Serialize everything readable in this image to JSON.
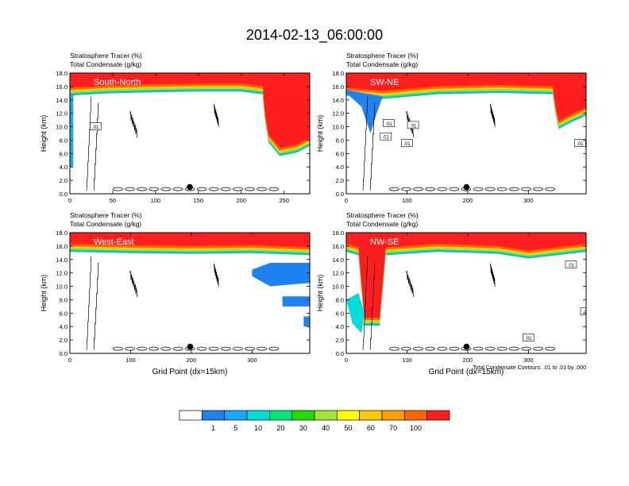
{
  "title": "2014-02-13_06:00:00",
  "colors": {
    "levels": [
      "#ffffff",
      "#1e82f0",
      "#14aaff",
      "#00dcdc",
      "#00e678",
      "#1edc00",
      "#a0e632",
      "#ffff00",
      "#ffc800",
      "#ffa000",
      "#ff6400",
      "#ff1e1e"
    ],
    "contour": "#000000"
  },
  "colorbar": {
    "labels": [
      "1",
      "5",
      "10",
      "20",
      "30",
      "40",
      "50",
      "60",
      "70",
      "100"
    ]
  },
  "chart_data": [
    {
      "type": "heatmap",
      "label": "South-North",
      "title_line1": "Stratosphere Tracer   (%)",
      "title_line2": "Total Condensate   (g/kg)",
      "ylabel": "Height (km)",
      "xlabel": "",
      "xlim": [
        0,
        280
      ],
      "ylim": [
        0,
        18
      ],
      "xticks": [
        "0",
        "50",
        "100",
        "150",
        "200",
        "250"
      ],
      "yticks": [
        "0.0",
        "2.0",
        "4.0",
        "6.0",
        "8.0",
        "10.0",
        "12.0",
        "14.0",
        "16.0",
        "18.0"
      ],
      "tropopause": [
        [
          0,
          15.0
        ],
        [
          40,
          15.3
        ],
        [
          100,
          15.5
        ],
        [
          150,
          15.6
        ],
        [
          200,
          15.6
        ],
        [
          225,
          15.2
        ],
        [
          228,
          11.0
        ],
        [
          232,
          8.0
        ],
        [
          245,
          6.0
        ],
        [
          265,
          6.5
        ],
        [
          280,
          7.5
        ]
      ],
      "contour_labels": [
        {
          "x": 30,
          "y": 10.0,
          "text": ".01"
        }
      ],
      "marker": {
        "x": 140,
        "y": 1.0
      }
    },
    {
      "type": "heatmap",
      "label": "SW-NE",
      "title_line1": "Stratosphere Tracer   (%)",
      "title_line2": "Total Condensate   (g/kg)",
      "ylabel": "Height (km)",
      "xlabel": "",
      "xlim": [
        0,
        395
      ],
      "ylim": [
        0,
        18
      ],
      "xticks": [
        "0",
        "100",
        "200",
        "300"
      ],
      "yticks": [
        "0.0",
        "2.0",
        "4.0",
        "6.0",
        "8.0",
        "10.0",
        "12.0",
        "14.0",
        "16.0",
        "18.0"
      ],
      "tropopause": [
        [
          0,
          15.0
        ],
        [
          60,
          14.5
        ],
        [
          150,
          15.2
        ],
        [
          250,
          15.4
        ],
        [
          340,
          15.2
        ],
        [
          345,
          12.0
        ],
        [
          350,
          10.0
        ],
        [
          370,
          11.0
        ],
        [
          395,
          12.0
        ]
      ],
      "contour_labels": [
        {
          "x": 70,
          "y": 10.5,
          "text": ".01"
        },
        {
          "x": 65,
          "y": 8.5,
          "text": ".01"
        },
        {
          "x": 110,
          "y": 10.2,
          "text": ".01"
        },
        {
          "x": 100,
          "y": 7.5,
          "text": ".01"
        },
        {
          "x": 385,
          "y": 7.5,
          "text": ".01"
        }
      ],
      "marker": {
        "x": 198,
        "y": 1.0
      }
    },
    {
      "type": "heatmap",
      "label": "West-East",
      "title_line1": "Stratosphere Tracer   (%)",
      "title_line2": "Total Condensate   (g/kg)",
      "ylabel": "Height (km)",
      "xlabel": "Grid Point (dx=15km)",
      "xlim": [
        0,
        395
      ],
      "ylim": [
        0,
        18
      ],
      "xticks": [
        "0",
        "100",
        "200",
        "300"
      ],
      "yticks": [
        "0.0",
        "2.0",
        "4.0",
        "6.0",
        "8.0",
        "10.0",
        "12.0",
        "14.0",
        "16.0",
        "18.0"
      ],
      "tropopause": [
        [
          0,
          15.5
        ],
        [
          100,
          15.3
        ],
        [
          200,
          15.2
        ],
        [
          300,
          15.3
        ],
        [
          395,
          15.0
        ]
      ],
      "contour_labels": [],
      "marker": {
        "x": 198,
        "y": 1.0
      }
    },
    {
      "type": "heatmap",
      "label": "NW-SE",
      "title_line1": "Stratosphere Tracer   (%)",
      "title_line2": "Total Condensate   (g/kg)",
      "ylabel": "Height (km)",
      "xlabel": "Grid Point (dx=15km)",
      "xlim": [
        0,
        395
      ],
      "ylim": [
        0,
        18
      ],
      "xticks": [
        "0",
        "100",
        "200",
        "300"
      ],
      "yticks": [
        "0.0",
        "2.0",
        "4.0",
        "6.0",
        "8.0",
        "10.0",
        "12.0",
        "14.0",
        "16.0",
        "18.0"
      ],
      "tropopause": [
        [
          0,
          15.5
        ],
        [
          20,
          15.0
        ],
        [
          30,
          4.5
        ],
        [
          55,
          4.5
        ],
        [
          65,
          15.0
        ],
        [
          150,
          15.5
        ],
        [
          250,
          15.2
        ],
        [
          300,
          14.5
        ],
        [
          395,
          15.5
        ]
      ],
      "contour_labels": [
        {
          "x": 370,
          "y": 13.2,
          "text": ".01"
        },
        {
          "x": 395,
          "y": 6.2,
          "text": ".01"
        },
        {
          "x": 300,
          "y": 2.3,
          "text": ".01"
        }
      ],
      "marker": {
        "x": 198,
        "y": 1.0
      },
      "footnote": "Total Condensate Contours: .01 to .01 by .000"
    }
  ]
}
